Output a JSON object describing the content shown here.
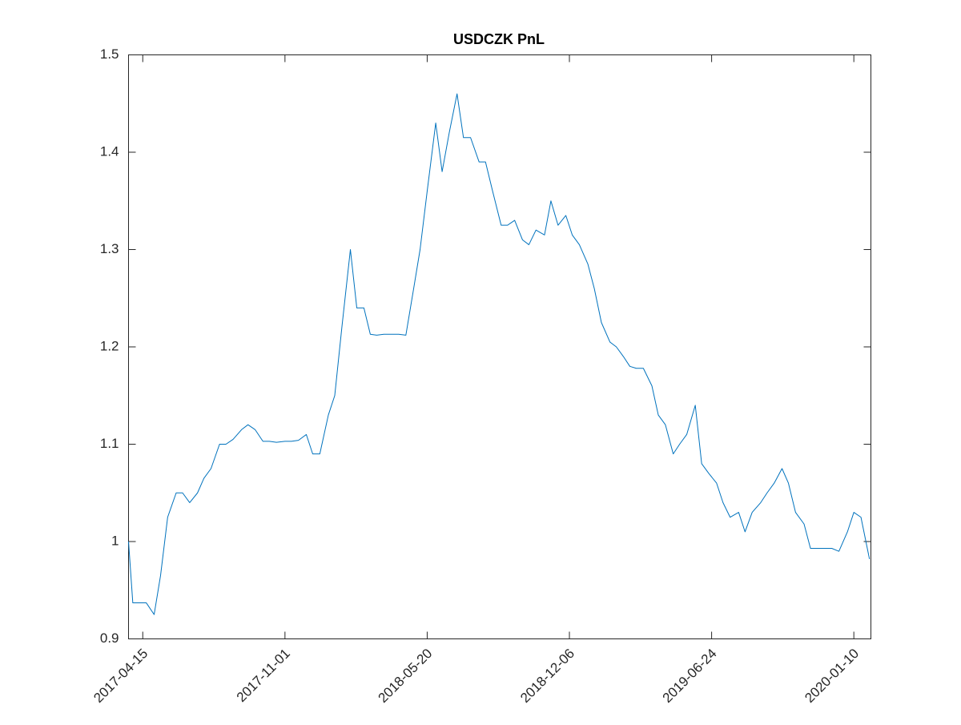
{
  "chart_data": {
    "type": "line",
    "title": "USDCZK PnL",
    "x": [
      "2017-03-26",
      "2017-04-01",
      "2017-04-10",
      "2017-04-20",
      "2017-05-01",
      "2017-05-10",
      "2017-05-20",
      "2017-06-01",
      "2017-06-10",
      "2017-06-20",
      "2017-07-01",
      "2017-07-10",
      "2017-07-20",
      "2017-08-01",
      "2017-08-10",
      "2017-08-20",
      "2017-09-01",
      "2017-09-10",
      "2017-09-20",
      "2017-10-01",
      "2017-10-10",
      "2017-10-20",
      "2017-11-01",
      "2017-11-10",
      "2017-11-20",
      "2017-12-01",
      "2017-12-10",
      "2017-12-20",
      "2018-01-01",
      "2018-01-10",
      "2018-01-20",
      "2018-02-01",
      "2018-02-10",
      "2018-02-20",
      "2018-03-01",
      "2018-03-10",
      "2018-03-20",
      "2018-04-01",
      "2018-04-10",
      "2018-04-20",
      "2018-05-01",
      "2018-05-10",
      "2018-05-20",
      "2018-06-01",
      "2018-06-10",
      "2018-06-20",
      "2018-07-01",
      "2018-07-10",
      "2018-07-20",
      "2018-08-01",
      "2018-08-10",
      "2018-08-20",
      "2018-09-01",
      "2018-09-10",
      "2018-09-20",
      "2018-10-01",
      "2018-10-10",
      "2018-10-20",
      "2018-11-01",
      "2018-11-10",
      "2018-11-20",
      "2018-12-01",
      "2018-12-10",
      "2018-12-20",
      "2019-01-01",
      "2019-01-10",
      "2019-01-20",
      "2019-02-01",
      "2019-02-10",
      "2019-02-20",
      "2019-03-01",
      "2019-03-10",
      "2019-03-20",
      "2019-04-01",
      "2019-04-10",
      "2019-04-20",
      "2019-05-01",
      "2019-05-10",
      "2019-05-20",
      "2019-06-01",
      "2019-06-10",
      "2019-06-20",
      "2019-07-01",
      "2019-07-10",
      "2019-07-20",
      "2019-08-01",
      "2019-08-10",
      "2019-08-20",
      "2019-09-01",
      "2019-09-10",
      "2019-09-20",
      "2019-10-01",
      "2019-10-10",
      "2019-10-20",
      "2019-11-01",
      "2019-11-10",
      "2019-11-20",
      "2019-12-01",
      "2019-12-10",
      "2019-12-20",
      "2020-01-01",
      "2020-01-10",
      "2020-01-20",
      "2020-02-01"
    ],
    "values": [
      1.0,
      0.937,
      0.937,
      0.937,
      0.925,
      0.965,
      1.025,
      1.05,
      1.05,
      1.04,
      1.05,
      1.065,
      1.075,
      1.1,
      1.1,
      1.105,
      1.115,
      1.12,
      1.115,
      1.103,
      1.103,
      1.102,
      1.103,
      1.103,
      1.104,
      1.11,
      1.09,
      1.09,
      1.13,
      1.15,
      1.22,
      1.3,
      1.24,
      1.24,
      1.213,
      1.212,
      1.213,
      1.213,
      1.213,
      1.212,
      1.26,
      1.3,
      1.36,
      1.43,
      1.38,
      1.42,
      1.46,
      1.415,
      1.415,
      1.39,
      1.39,
      1.36,
      1.325,
      1.325,
      1.33,
      1.31,
      1.305,
      1.32,
      1.315,
      1.35,
      1.325,
      1.335,
      1.315,
      1.305,
      1.285,
      1.26,
      1.225,
      1.205,
      1.2,
      1.19,
      1.18,
      1.178,
      1.178,
      1.16,
      1.13,
      1.12,
      1.09,
      1.1,
      1.11,
      1.14,
      1.08,
      1.07,
      1.06,
      1.04,
      1.025,
      1.03,
      1.01,
      1.03,
      1.04,
      1.05,
      1.06,
      1.075,
      1.06,
      1.03,
      1.018,
      0.993,
      0.993,
      0.993,
      0.993,
      0.99,
      1.01,
      1.03,
      1.025,
      0.982
    ],
    "color": "#0072bd",
    "xlim": [
      "2017-03-26",
      "2020-02-03"
    ],
    "xticks": [
      "2017-04-15",
      "2017-11-01",
      "2018-05-20",
      "2018-12-06",
      "2019-06-24",
      "2020-01-10"
    ],
    "ylim": [
      0.9,
      1.5
    ],
    "yticks": [
      0.9,
      1,
      1.1,
      1.2,
      1.3,
      1.4,
      1.5
    ]
  }
}
